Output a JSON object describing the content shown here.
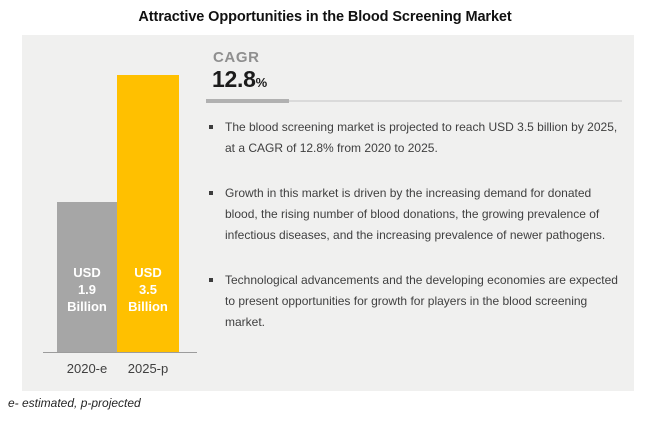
{
  "page": {
    "title": "Attractive Opportunities in the Blood Screening Market",
    "footnote": "e- estimated, p-projected"
  },
  "cagr": {
    "label": "CAGR",
    "value": "12.8",
    "unit": "%"
  },
  "bullets": [
    "The blood screening market is projected to reach USD 3.5 billion by 2025, at a CAGR of 12.8% from 2020 to 2025.",
    "Growth in this market is driven by the increasing demand for donated blood, the rising number of blood donations, the growing prevalence of infectious diseases, and the increasing prevalence of newer pathogens.",
    "Technological advancements and the developing economies are expected to present opportunities for growth for players in the blood screening market."
  ],
  "chart_data": {
    "type": "bar",
    "title": "Attractive Opportunities in the Blood Screening Market",
    "categories": [
      "2020-e",
      "2025-p"
    ],
    "values": [
      1.9,
      3.5
    ],
    "unit": "USD Billion",
    "bar_labels": [
      [
        "USD",
        "1.9",
        "Billion"
      ],
      [
        "USD",
        "3.5",
        "Billion"
      ]
    ],
    "bar_colors": [
      "#a6a6a6",
      "#ffc000"
    ],
    "ylim": [
      0,
      3.5
    ],
    "grid": false,
    "legend": "none",
    "cagr_percent": "12.8",
    "xlabel": "",
    "ylabel": ""
  },
  "colors": {
    "accent_yellow": "#ffc000",
    "bar_gray": "#a6a6a6",
    "panel_background": "#f0f0ef",
    "text_dark": "#404040",
    "cagr_gray": "#8f8f8f"
  }
}
